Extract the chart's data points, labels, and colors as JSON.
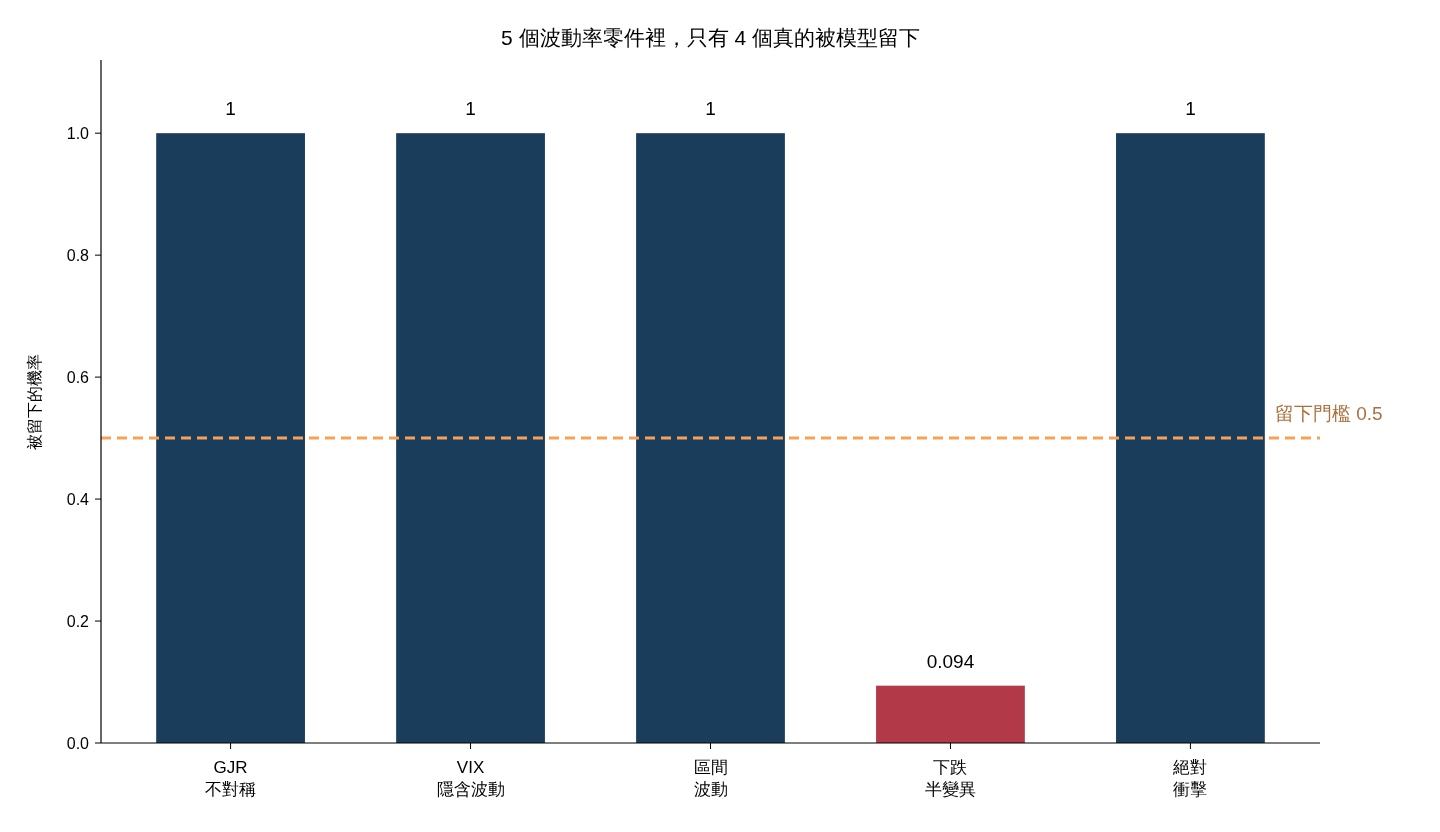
{
  "chart_data": {
    "type": "bar",
    "title": "5 個波動率零件裡，只有 4 個真的被模型留下",
    "ylabel": "被留下的機率",
    "categories": [
      "GJR\n不對稱",
      "VIX\n隱含波動",
      "區間波動",
      "下跌半變異",
      "絕對衝擊"
    ],
    "values": [
      1,
      1,
      1,
      0.094,
      1
    ],
    "colors": [
      "#1b3d5c",
      "#1b3d5c",
      "#1b3d5c",
      "#b23a48",
      "#1b3d5c"
    ],
    "ylim": [
      0,
      1.12
    ],
    "yticks": [
      {
        "value": 0,
        "label": "0.0"
      },
      {
        "value": 0.2,
        "label": "0.2"
      },
      {
        "value": 0.4,
        "label": "0.4"
      },
      {
        "value": 0.6,
        "label": "0.6"
      },
      {
        "value": 0.8,
        "label": "0.8"
      },
      {
        "value": 1,
        "label": "1.0"
      }
    ],
    "data_labels": true,
    "grid": false,
    "ref_lines": [
      {
        "axis": "y",
        "value": 0.5,
        "label": "留下門檻 0.5",
        "color": "#f4a259",
        "line_style": "dashed"
      }
    ]
  }
}
